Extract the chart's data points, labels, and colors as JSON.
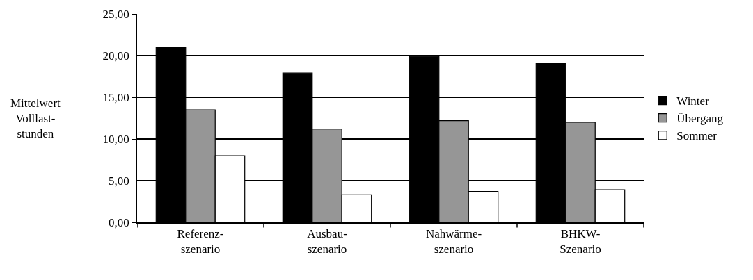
{
  "chart_data": {
    "type": "bar",
    "ylabel": "Mittelwert\nVolllast-\nstunden",
    "categories": [
      "Referenz-\nszenario",
      "Ausbau-\nszenario",
      "Nahwärme-\nszenario",
      "BHKW-\nSzenario"
    ],
    "series": [
      {
        "name": "Winter",
        "color": "#000000",
        "values": [
          21.0,
          17.9,
          19.9,
          19.1
        ]
      },
      {
        "name": "Übergang",
        "color": "#969696",
        "values": [
          13.5,
          11.2,
          12.2,
          12.0
        ]
      },
      {
        "name": "Sommer",
        "color": "#ffffff",
        "values": [
          8.0,
          3.3,
          3.7,
          3.9
        ]
      }
    ],
    "ylim": [
      0,
      25
    ],
    "yticks": [
      {
        "value": 0,
        "label": "0,00"
      },
      {
        "value": 5,
        "label": "5,00"
      },
      {
        "value": 10,
        "label": "10,00"
      },
      {
        "value": 15,
        "label": "15,00"
      },
      {
        "value": 20,
        "label": "20,00"
      },
      {
        "value": 25,
        "label": "25,00"
      }
    ],
    "grid": "y",
    "legend": "right"
  }
}
